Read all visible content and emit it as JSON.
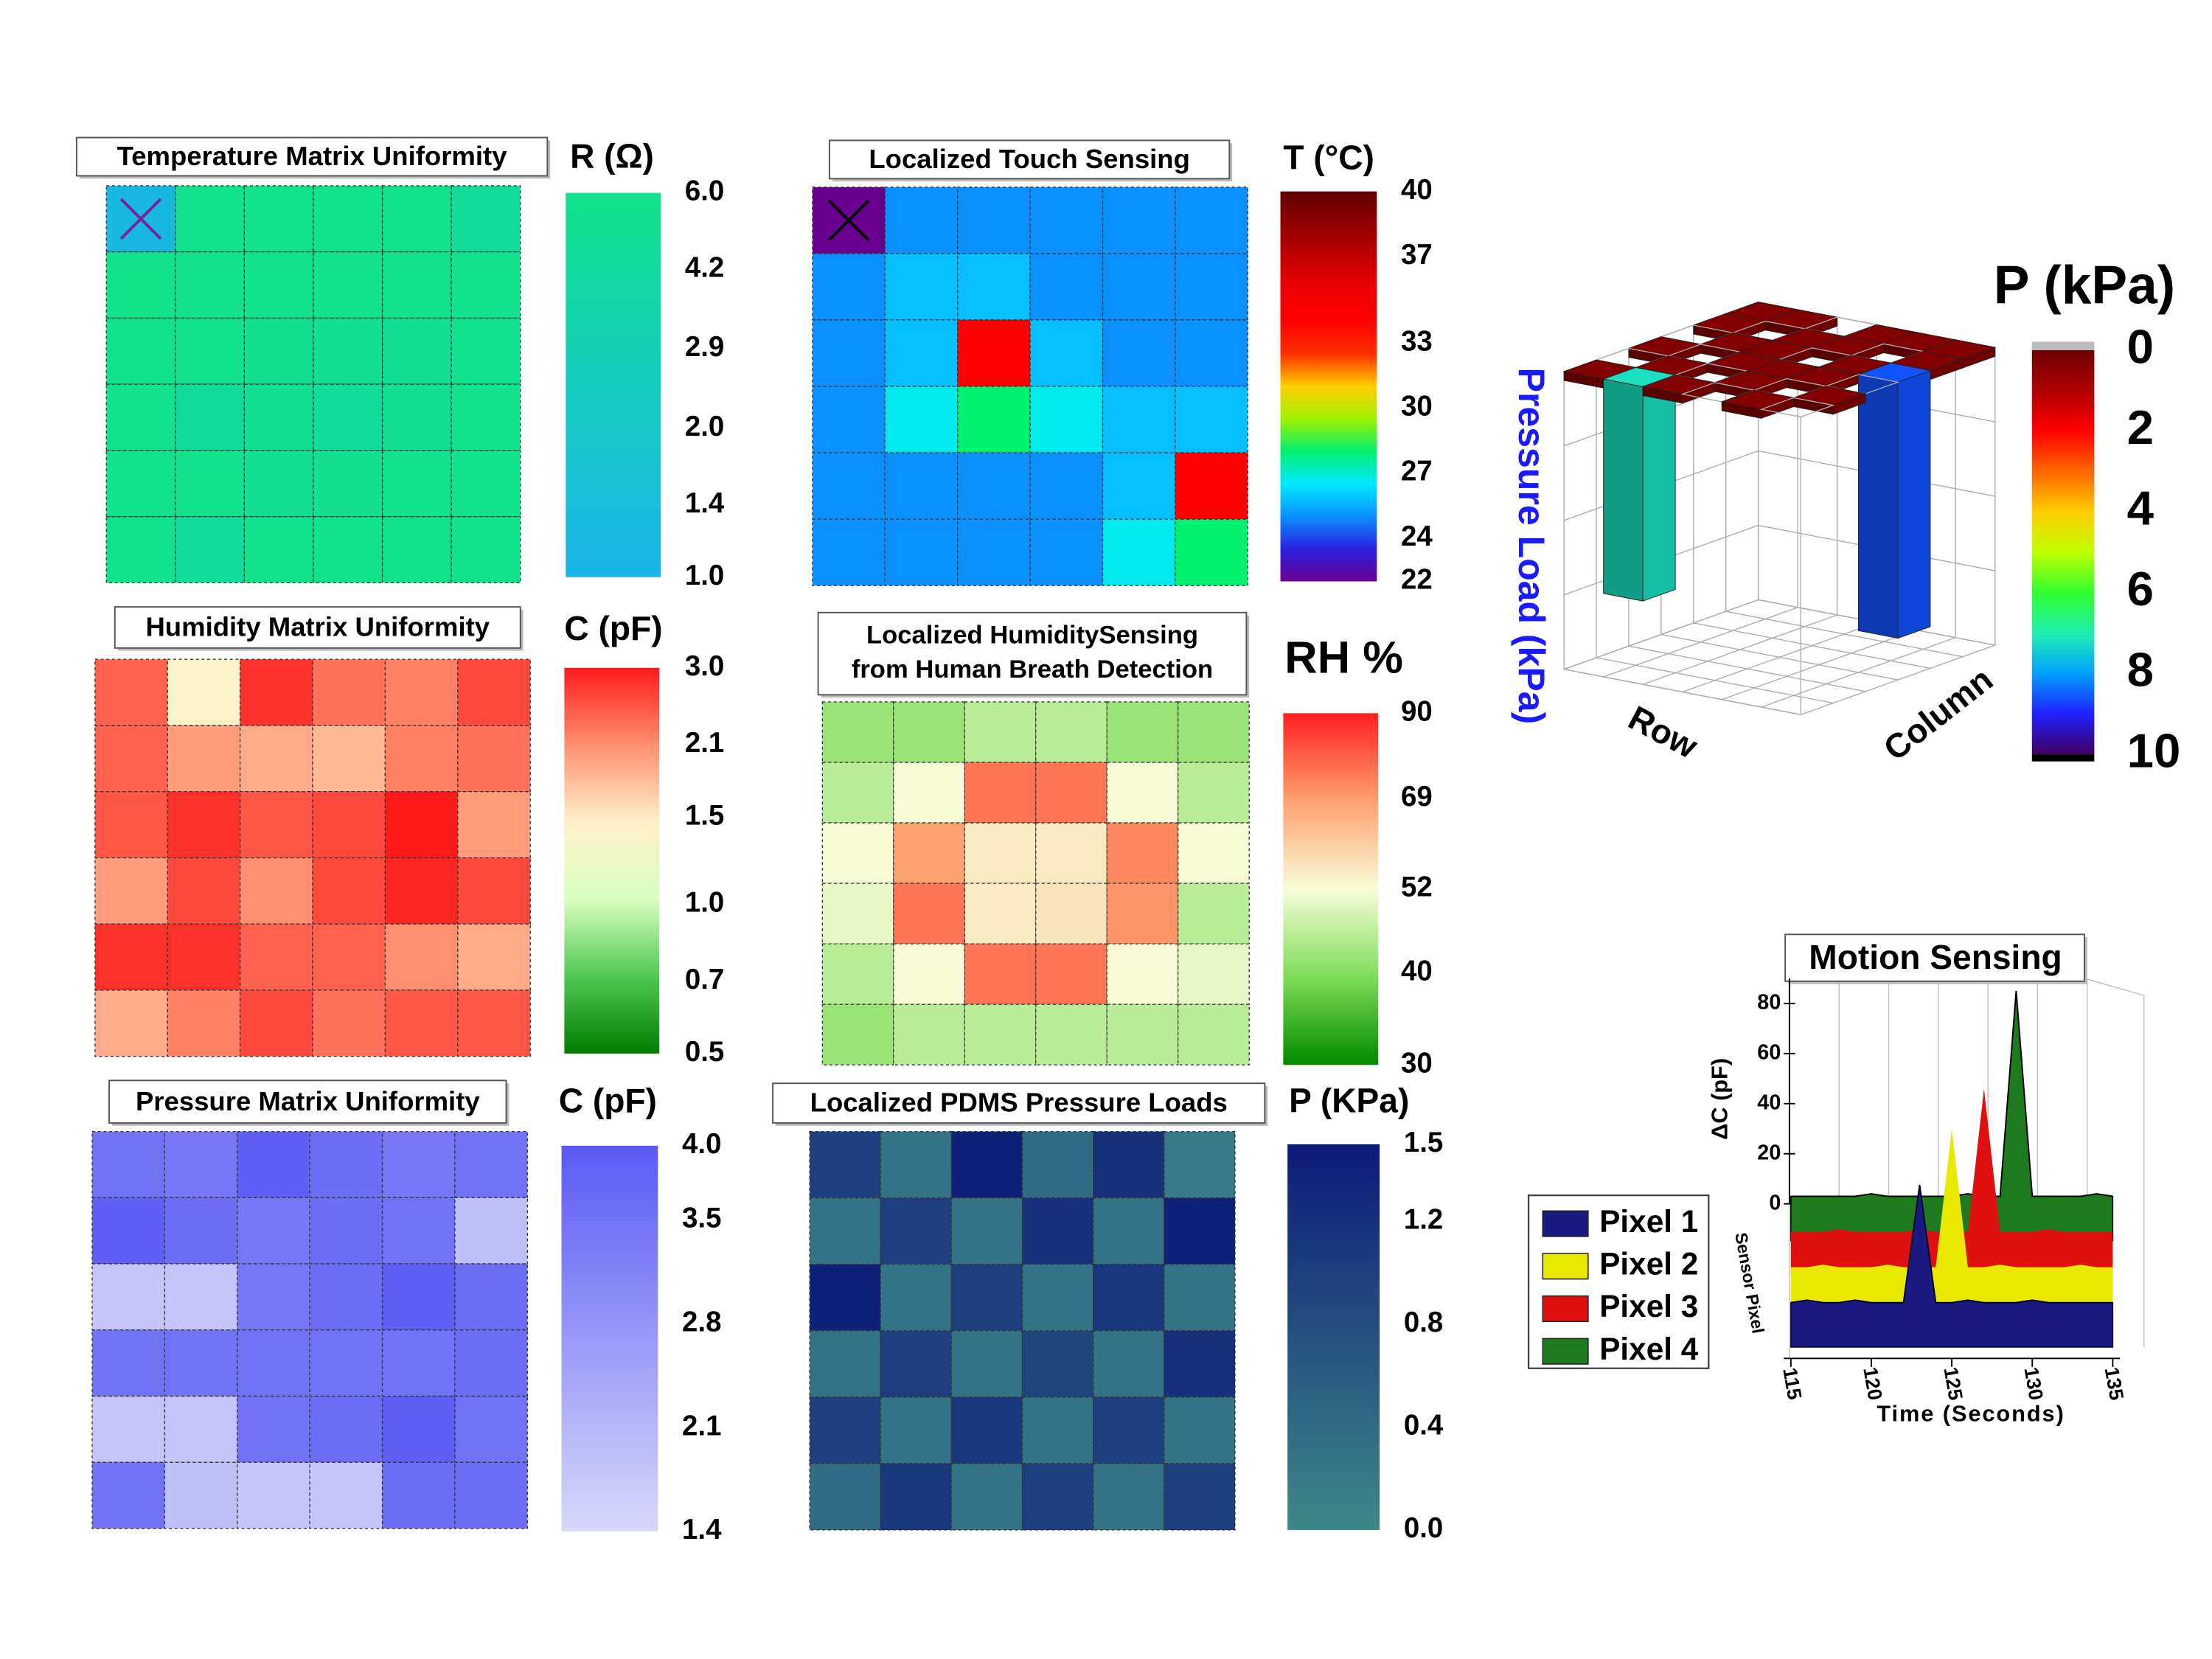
{
  "chart_data": [
    {
      "type": "heatmap",
      "title": "Temperature Matrix Uniformity",
      "colorbar_label": "R (Ω)",
      "scale": "log",
      "zlim": [
        1,
        6
      ],
      "zticks": [
        {
          "value": 6,
          "label": "6.0"
        },
        4.2,
        2.9,
        {
          "value": 2,
          "label": "2.0"
        },
        1.4,
        {
          "value": 1,
          "label": "1.0"
        }
      ],
      "colors": [
        "#1bb5e8",
        "#13cbbd",
        "#12e38a"
      ],
      "values": [
        [
          1.2,
          5.8,
          5.8,
          5.8,
          5.8,
          4.6
        ],
        [
          5.9,
          5.8,
          5.8,
          5.8,
          5.8,
          5.6
        ],
        [
          5.8,
          5.7,
          5.4,
          5.0,
          5.0,
          5.5
        ],
        [
          5.8,
          4.5,
          5.0,
          4.6,
          5.2,
          5.6
        ],
        [
          5.7,
          5.6,
          5.2,
          5.4,
          5.6,
          5.8
        ],
        [
          5.8,
          4.4,
          5.8,
          5.8,
          5.8,
          5.8
        ]
      ]
    },
    {
      "type": "heatmap",
      "title": "Humidity Matrix Uniformity",
      "colorbar_label": "C (pF)",
      "scale": "log",
      "zlim": [
        0.5,
        3
      ],
      "zticks": [
        {
          "value": 3,
          "label": "3.0"
        },
        2.1,
        1.5,
        {
          "value": 1,
          "label": "1.0"
        },
        0.7,
        0.5
      ],
      "colors": [
        "#007d00",
        "#50c850",
        "#d8ffc0",
        "#fff0c8",
        "#ff9070",
        "#ff1a1a"
      ],
      "values": [
        [
          2.4,
          1.4,
          2.8,
          2.3,
          2.2,
          2.6
        ],
        [
          2.4,
          2.0,
          1.9,
          1.8,
          2.2,
          2.3
        ],
        [
          2.5,
          2.8,
          2.5,
          2.6,
          3.0,
          2.0
        ],
        [
          2.0,
          2.6,
          2.1,
          2.6,
          2.9,
          2.6
        ],
        [
          2.8,
          2.8,
          2.4,
          2.4,
          2.1,
          1.9
        ],
        [
          1.9,
          2.2,
          2.6,
          2.3,
          2.5,
          2.5
        ]
      ]
    },
    {
      "type": "heatmap",
      "title": "Pressure Matrix Uniformity",
      "colorbar_label": "C (pF)",
      "scale": "linear",
      "zlim": [
        1.4,
        4
      ],
      "zticks": [
        {
          "value": 4,
          "label": "4.0"
        },
        3.5,
        2.8,
        2.1,
        1.4
      ],
      "colors": [
        "#d8d8fa",
        "#5a5af5"
      ],
      "values": [
        [
          3.5,
          3.4,
          3.9,
          3.6,
          3.4,
          3.5
        ],
        [
          3.9,
          3.6,
          3.4,
          3.6,
          3.5,
          1.9
        ],
        [
          1.8,
          1.8,
          3.4,
          3.6,
          3.9,
          3.6
        ],
        [
          3.5,
          3.5,
          3.5,
          3.5,
          3.5,
          3.6
        ],
        [
          1.8,
          1.8,
          3.5,
          3.6,
          3.9,
          3.5
        ],
        [
          3.5,
          1.9,
          1.8,
          1.8,
          3.6,
          3.6
        ]
      ]
    },
    {
      "type": "heatmap",
      "title": "Localized Touch Sensing",
      "colorbar_label": "T (°C)",
      "scale": "linear",
      "zlim": [
        22,
        40
      ],
      "zticks": [
        40,
        37,
        33,
        30,
        27,
        24,
        22
      ],
      "colors": [
        "#6a0090",
        "#2a20e0",
        "#0a90ff",
        "#00e8ff",
        "#00f070",
        "#a0f000",
        "#ffd000",
        "#ff3000",
        "#ff0000",
        "#ee0000",
        "#c00000",
        "#900000",
        "#600000"
      ],
      "values": [
        [
          22,
          25,
          25,
          25,
          25,
          25
        ],
        [
          25,
          25.8,
          25.8,
          25,
          25,
          25
        ],
        [
          25,
          25.8,
          34,
          25.8,
          25,
          25
        ],
        [
          25,
          26.7,
          28,
          26.7,
          25.8,
          25.8
        ],
        [
          25,
          25,
          25,
          25,
          25.8,
          34
        ],
        [
          25,
          25,
          25,
          25,
          26.7,
          28
        ]
      ]
    },
    {
      "type": "heatmap",
      "title": [
        "Localized HumiditySensing",
        "from Human Breath Detection"
      ],
      "colorbar_label": "RH %",
      "scale": "log",
      "zlim": [
        30,
        90
      ],
      "zticks": [
        90,
        69,
        52,
        40,
        30
      ],
      "colors": [
        "#008a00",
        "#7fdc5a",
        "#f8fdd8",
        "#ffa070",
        "#ff2020"
      ],
      "values": [
        [
          42,
          42,
          45,
          45,
          42,
          42
        ],
        [
          45,
          52,
          75,
          75,
          52,
          45
        ],
        [
          52,
          68,
          55,
          55,
          72,
          52
        ],
        [
          50,
          75,
          55,
          56,
          70,
          45
        ],
        [
          45,
          52,
          75,
          75,
          52,
          50
        ],
        [
          42,
          45,
          45,
          45,
          45,
          45
        ]
      ]
    },
    {
      "type": "heatmap",
      "title": "Localized PDMS Pressure Loads",
      "colorbar_label": "P (KPa)",
      "scale": "linear",
      "zlim": [
        0,
        1.5
      ],
      "zticks": [
        1.5,
        1.2,
        0.8,
        0.4,
        {
          "value": 0,
          "label": "0.0"
        }
      ],
      "colors": [
        "#3e8888",
        "#0c1a78"
      ],
      "values": [
        [
          1.0,
          0.3,
          1.4,
          0.4,
          1.2,
          0.2
        ],
        [
          0.3,
          1.0,
          0.3,
          1.2,
          0.3,
          1.4
        ],
        [
          1.4,
          0.3,
          1.0,
          0.3,
          1.1,
          0.3
        ],
        [
          0.3,
          1.0,
          0.3,
          0.9,
          0.3,
          1.2
        ],
        [
          1.0,
          0.3,
          1.1,
          0.3,
          1.0,
          0.3
        ],
        [
          0.4,
          1.1,
          0.3,
          1.0,
          0.3,
          1.0
        ]
      ]
    },
    {
      "type": "bar3d",
      "colorbar_label": "P (kPa)",
      "zlabel": "Pressure Load (kPa)",
      "xlabel": "Row",
      "ylabel": "Column",
      "zlim": [
        0,
        10
      ],
      "zticks": [
        0,
        2,
        4,
        6,
        8,
        10
      ],
      "colors": [
        "#6e0000",
        "#b00000",
        "#ff0000",
        "#ff6600",
        "#ffcc00",
        "#c0ff00",
        "#30ff30",
        "#20f0b0",
        "#00a0ff",
        "#2020ff",
        "#400060"
      ],
      "values": [
        [
          0.3,
          0,
          0.3,
          0,
          0.3,
          0.3
        ],
        [
          7.2,
          0.3,
          0,
          0.3,
          0,
          0.3
        ],
        [
          0.3,
          0,
          0.3,
          0.3,
          0.3,
          0
        ],
        [
          0,
          0.3,
          0.3,
          0,
          0.3,
          0.3
        ],
        [
          0.3,
          0,
          0.3,
          0.3,
          0,
          0.3
        ],
        [
          0,
          0.3,
          0,
          8.6,
          0.3,
          0.3
        ]
      ]
    },
    {
      "type": "waterfall",
      "title": "Motion Sensing",
      "xlabel": "Time (Seconds)",
      "ylabel": "ΔC (pF)",
      "zlabel": "Sensor Pixel",
      "x": [
        115,
        116,
        117,
        118,
        119,
        120,
        121,
        122,
        123,
        124,
        125,
        126,
        127,
        128,
        129,
        130,
        131,
        132,
        133,
        134,
        135
      ],
      "xlim": [
        115,
        135
      ],
      "xticks": [
        115,
        120,
        125,
        130,
        135
      ],
      "ylim": [
        0,
        90
      ],
      "yticks": [
        0,
        20,
        40,
        60,
        80
      ],
      "series": [
        {
          "name": "Pixel 1",
          "color": "#1a1a80",
          "values": [
            3,
            4,
            3,
            3,
            4,
            3,
            3,
            3,
            50,
            3,
            3,
            4,
            3,
            3,
            3,
            4,
            3,
            3,
            3,
            3,
            3
          ]
        },
        {
          "name": "Pixel 2",
          "color": "#e8e800",
          "values": [
            3,
            3,
            4,
            3,
            3,
            3,
            4,
            3,
            3,
            3,
            58,
            3,
            3,
            4,
            3,
            3,
            3,
            3,
            4,
            3,
            3
          ]
        },
        {
          "name": "Pixel 3",
          "color": "#e01010",
          "values": [
            3,
            3,
            3,
            4,
            3,
            3,
            3,
            3,
            4,
            3,
            3,
            3,
            60,
            3,
            3,
            3,
            4,
            3,
            3,
            3,
            3
          ]
        },
        {
          "name": "Pixel 4",
          "color": "#1e7a1e",
          "values": [
            3,
            3,
            3,
            3,
            3,
            4,
            3,
            3,
            3,
            3,
            3,
            4,
            3,
            3,
            85,
            3,
            3,
            3,
            3,
            4,
            3
          ]
        }
      ]
    }
  ]
}
